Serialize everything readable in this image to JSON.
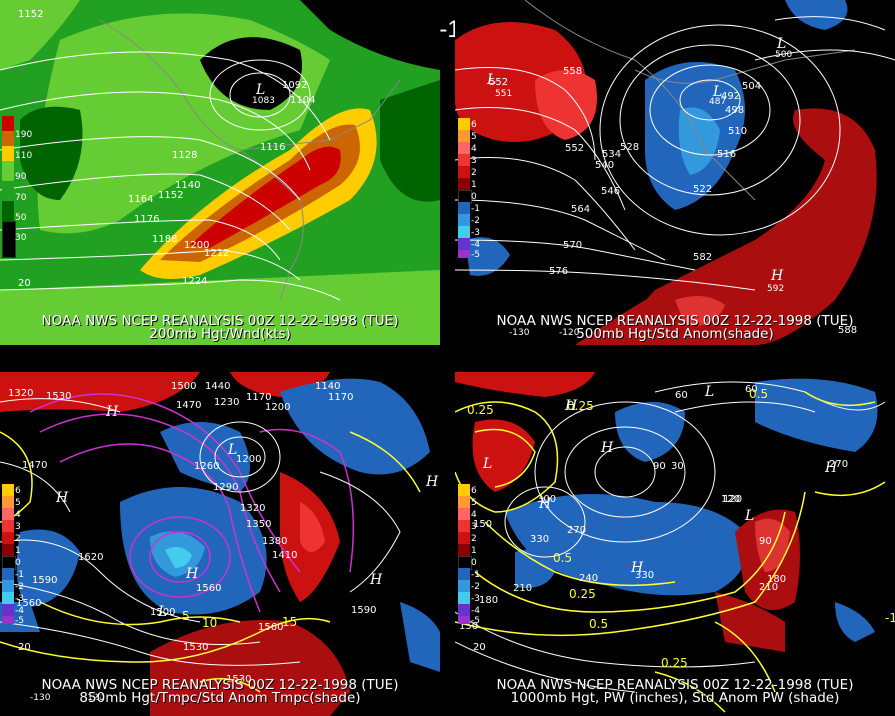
{
  "main_title": "00Z 12-22-1998 (TUE)",
  "panels": {
    "p200": {
      "caption1": "NOAA NWS NCEP REANALYSIS 00Z 12-22-1998 (TUE)",
      "caption2": "200mb Hgt/Wnd(kts)",
      "legend": [
        "190",
        "110",
        "90",
        "70",
        "50",
        "30"
      ],
      "contours": [
        "1152",
        "1092",
        "1104",
        "1116",
        "1128",
        "1140",
        "1164",
        "1152",
        "1176",
        "1188",
        "1200",
        "1212",
        "1224"
      ],
      "low_label": "L",
      "low_value": "1083",
      "speed_label": "20"
    },
    "p500": {
      "caption1": "NOAA NWS NCEP REANALYSIS 00Z 12-22-1998 (TUE)",
      "caption2": "500mb Hgt/Std Anom(shade)",
      "legend": [
        "6",
        "5",
        "4",
        "3",
        "2",
        "1",
        "0",
        "-1",
        "-2",
        "-3",
        "-4",
        "-5"
      ],
      "contours": [
        "552",
        "558",
        "552",
        "534",
        "528",
        "540",
        "546",
        "564",
        "570",
        "576",
        "504",
        "498",
        "492",
        "510",
        "516",
        "522",
        "582",
        "588"
      ],
      "axis_labels": [
        "-130",
        "-120"
      ],
      "low_label": "L",
      "low_values": [
        "551",
        "487",
        "500"
      ],
      "high_label": "H",
      "high_value": "592"
    },
    "p850": {
      "caption1": "NOAA NWS NCEP REANALYSIS 00Z 12-22-1998 (TUE)",
      "caption2": "850mb Hgt/Tmpc/Std Anom Tmpc(shade)",
      "legend": [
        "6",
        "5",
        "4",
        "3",
        "2",
        "1",
        "0",
        "-1",
        "-2",
        "-3",
        "-4",
        "-5"
      ],
      "contours": [
        "1320",
        "1530",
        "1470",
        "1500",
        "1470",
        "1440",
        "1230",
        "1170",
        "1200",
        "1140",
        "1170",
        "1260",
        "1200",
        "1290",
        "1320",
        "1350",
        "1380",
        "1410",
        "1620",
        "1590",
        "1560",
        "1560",
        "1590",
        "1560",
        "1530",
        "1530",
        "1500"
      ],
      "high_label": "H",
      "low_label": "L",
      "minor": [
        "20",
        "-130",
        "-120",
        "5",
        "10",
        "15"
      ]
    },
    "p1000": {
      "caption1": "NOAA NWS NCEP REANALYSIS 00Z 12-22-1998 (TUE)",
      "caption2": "1000mb Hgt, PW (inches), Std Anom PW (shade)",
      "legend": [
        "6",
        "5",
        "4",
        "3",
        "2",
        "1",
        "0",
        "-1",
        "-2",
        "-3",
        "-4",
        "-5"
      ],
      "contours": [
        "0.25",
        "150",
        "300",
        "270",
        "330",
        "240",
        "210",
        "180",
        "150",
        "120",
        "90",
        "60",
        "30",
        "330",
        "0.5",
        "0.5",
        "0.25",
        "0.25",
        "0.25",
        "270",
        "210",
        "120",
        "60",
        "90",
        "180",
        "0.5",
        "-1",
        "20"
      ],
      "high_label": "H",
      "low_label": "L"
    }
  },
  "colors": {
    "wind_dark": "#006400",
    "wind_green": "#22a022",
    "wind_light": "#66cc33",
    "wind_yellow": "#ffcc00",
    "wind_orange": "#cc6600",
    "wind_red": "#cc0000",
    "anom_pos": "#cc1111",
    "anom_neg": "#2277cc"
  }
}
